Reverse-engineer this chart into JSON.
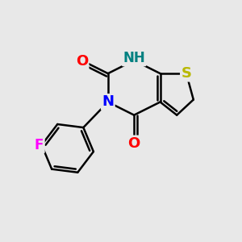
{
  "background_color": "#e8e8e8",
  "atom_colors": {
    "C": "#000000",
    "N_blue": "#0000ff",
    "N_teal": "#008080",
    "O": "#ff0000",
    "S": "#b8b800",
    "F": "#ff00ff"
  },
  "bond_color": "#000000",
  "bond_width": 1.8,
  "font_size_atoms": 12
}
